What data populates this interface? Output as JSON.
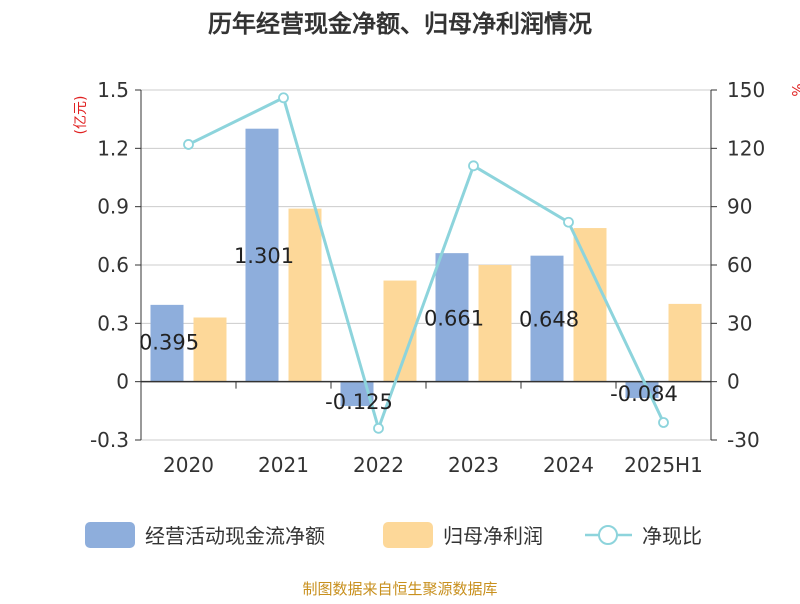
{
  "chart_data": {
    "type": "bar",
    "title": "历年经营现金净额、归母净利润情况",
    "categories": [
      "2020",
      "2021",
      "2022",
      "2023",
      "2024",
      "2025H1"
    ],
    "series": [
      {
        "name": "经营活动现金流净额",
        "type": "bar",
        "axis": "left",
        "color": "#8eaedc",
        "values": [
          0.395,
          1.301,
          -0.125,
          0.661,
          0.648,
          -0.084
        ],
        "labels": [
          "0.395",
          "1.301",
          "-0.125",
          "0.661",
          "0.648",
          "-0.084"
        ]
      },
      {
        "name": "归母净利润",
        "type": "bar",
        "axis": "left",
        "color": "#fdd899",
        "values": [
          0.33,
          0.89,
          0.52,
          0.6,
          0.79,
          0.4
        ]
      },
      {
        "name": "净现比",
        "type": "line",
        "axis": "right",
        "color": "#8dd4dc",
        "values": [
          122,
          146,
          -24,
          111,
          82,
          -21
        ]
      }
    ],
    "y_left": {
      "unit": "(亿元)",
      "min": -0.3,
      "max": 1.5,
      "ticks": [
        -0.3,
        0,
        0.3,
        0.6,
        0.9,
        1.2,
        1.5
      ],
      "tick_labels": [
        "-0.3",
        "0",
        "0.3",
        "0.6",
        "0.9",
        "1.2",
        "1.5"
      ]
    },
    "y_right": {
      "unit": "%",
      "min": -30,
      "max": 150,
      "ticks": [
        -30,
        0,
        30,
        60,
        90,
        120,
        150
      ],
      "tick_labels": [
        "-30",
        "0",
        "30",
        "60",
        "90",
        "120",
        "150"
      ]
    },
    "grid": true,
    "legend_position": "bottom",
    "source": "制图数据来自恒生聚源数据库"
  },
  "colors": {
    "title": "#333333",
    "axis_text": "#333333",
    "unit_text": "#e02020",
    "grid": "#cccccc",
    "source_text": "#c8901e"
  }
}
